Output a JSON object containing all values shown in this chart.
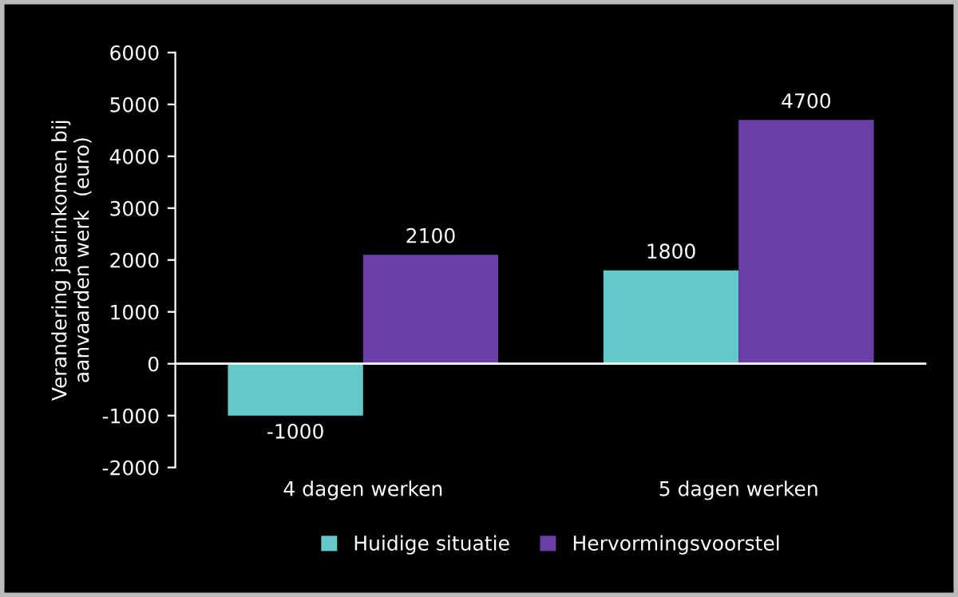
{
  "chart_data": {
    "type": "bar",
    "ylabel": "Verandering jaarinkomen bij\naanvaarden werk  (euro)",
    "categories": [
      "4 dagen werken",
      "5 dagen werken"
    ],
    "series": [
      {
        "name": "Huidige situatie",
        "color": "#66c9c9",
        "values": [
          -1000,
          1800
        ]
      },
      {
        "name": "Hervormingsvoorstel",
        "color": "#6a40a8",
        "values": [
          2100,
          4700
        ]
      }
    ],
    "ylim": [
      -2000,
      6000
    ],
    "yticks": [
      -2000,
      -1000,
      0,
      1000,
      2000,
      3000,
      4000,
      5000,
      6000
    ],
    "ref_lines": [
      {
        "axis": "y",
        "value": 0,
        "color": "#ffffff"
      }
    ],
    "data_labels": true,
    "grid": false,
    "legend": "bottom"
  }
}
